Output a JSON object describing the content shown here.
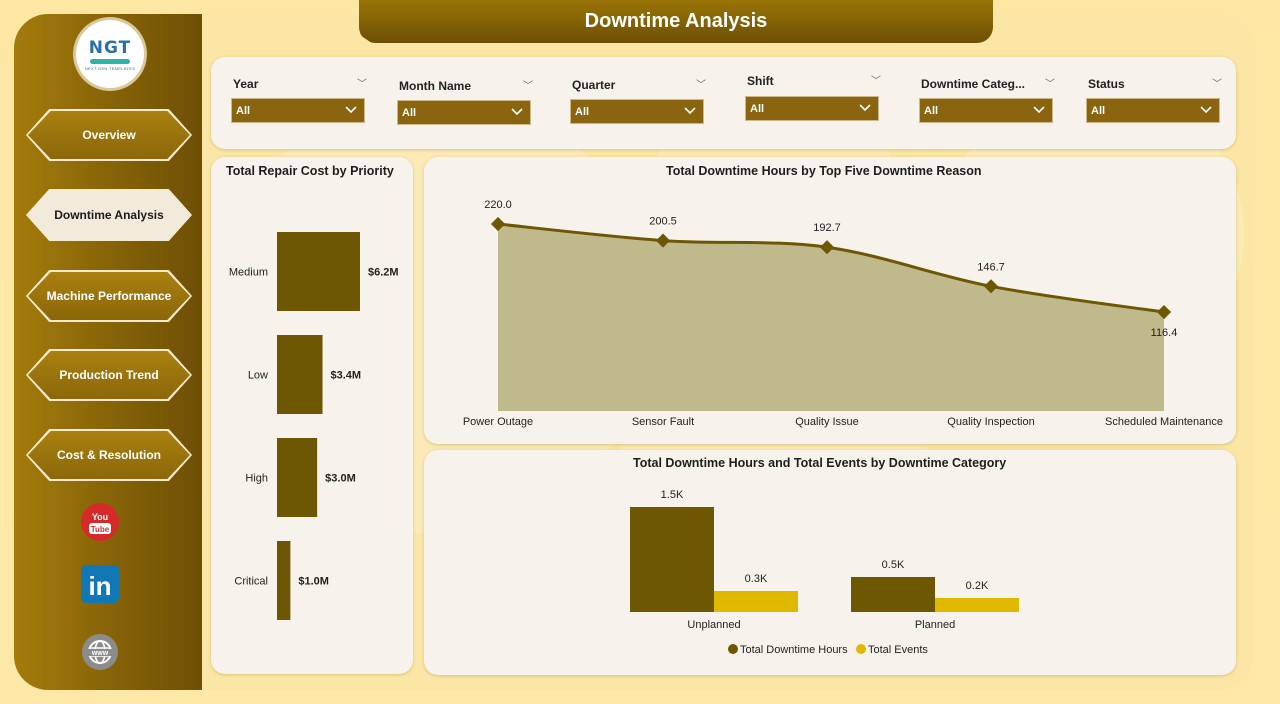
{
  "page_title": "Downtime Analysis",
  "logo": {
    "mark": "NGT",
    "subtitle": "NEXT GEN TEMPLATES"
  },
  "nav": {
    "items": [
      {
        "label": "Overview",
        "active": false
      },
      {
        "label": "Downtime Analysis",
        "active": true
      },
      {
        "label": "Machine Performance",
        "active": false
      },
      {
        "label": "Production Trend",
        "active": false
      },
      {
        "label": "Cost & Resolution",
        "active": false
      }
    ]
  },
  "social": {
    "youtube_text": "You Tube",
    "youtube_icon": "youtube-icon",
    "linkedin_text": "in",
    "linkedin_icon": "linkedin-icon",
    "web_icon": "globe-icon"
  },
  "filters": [
    {
      "label": "Year",
      "value": "All"
    },
    {
      "label": "Month Name",
      "value": "All"
    },
    {
      "label": "Quarter",
      "value": "All"
    },
    {
      "label": "Shift",
      "value": "All"
    },
    {
      "label": "Downtime Categ...",
      "value": "All"
    },
    {
      "label": "Status",
      "value": "All"
    }
  ],
  "colors": {
    "dark_olive": "#6d5703",
    "gold": "#e0b800",
    "area_fill": "#c0b98c",
    "line": "#6d5703"
  },
  "chart_data": [
    {
      "type": "bar",
      "orientation": "horizontal",
      "title": "Total Repair Cost by Priority",
      "categories": [
        "Medium",
        "Low",
        "High",
        "Critical"
      ],
      "values": [
        6.2,
        3.4,
        3.0,
        1.0
      ],
      "value_labels": [
        "$6.2M",
        "$3.4M",
        "$3.0M",
        "$1.0M"
      ],
      "unit": "$M"
    },
    {
      "type": "area",
      "title": "Total Downtime Hours by Top Five Downtime Reason",
      "categories": [
        "Power Outage",
        "Sensor Fault",
        "Quality Issue",
        "Quality Inspection",
        "Scheduled Maintenance"
      ],
      "values": [
        220.0,
        200.5,
        192.7,
        146.7,
        116.4
      ],
      "value_labels": [
        "220.0",
        "200.5",
        "192.7",
        "146.7",
        "116.4"
      ]
    },
    {
      "type": "bar",
      "title": "Total Downtime Hours and Total Events by Downtime Category",
      "categories": [
        "Unplanned",
        "Planned"
      ],
      "series": [
        {
          "name": "Total Downtime Hours",
          "values": [
            1500,
            500
          ],
          "value_labels": [
            "1.5K",
            "0.5K"
          ]
        },
        {
          "name": "Total Events",
          "values": [
            300,
            200
          ],
          "value_labels": [
            "0.3K",
            "0.2K"
          ]
        }
      ],
      "legend_position": "bottom"
    }
  ]
}
